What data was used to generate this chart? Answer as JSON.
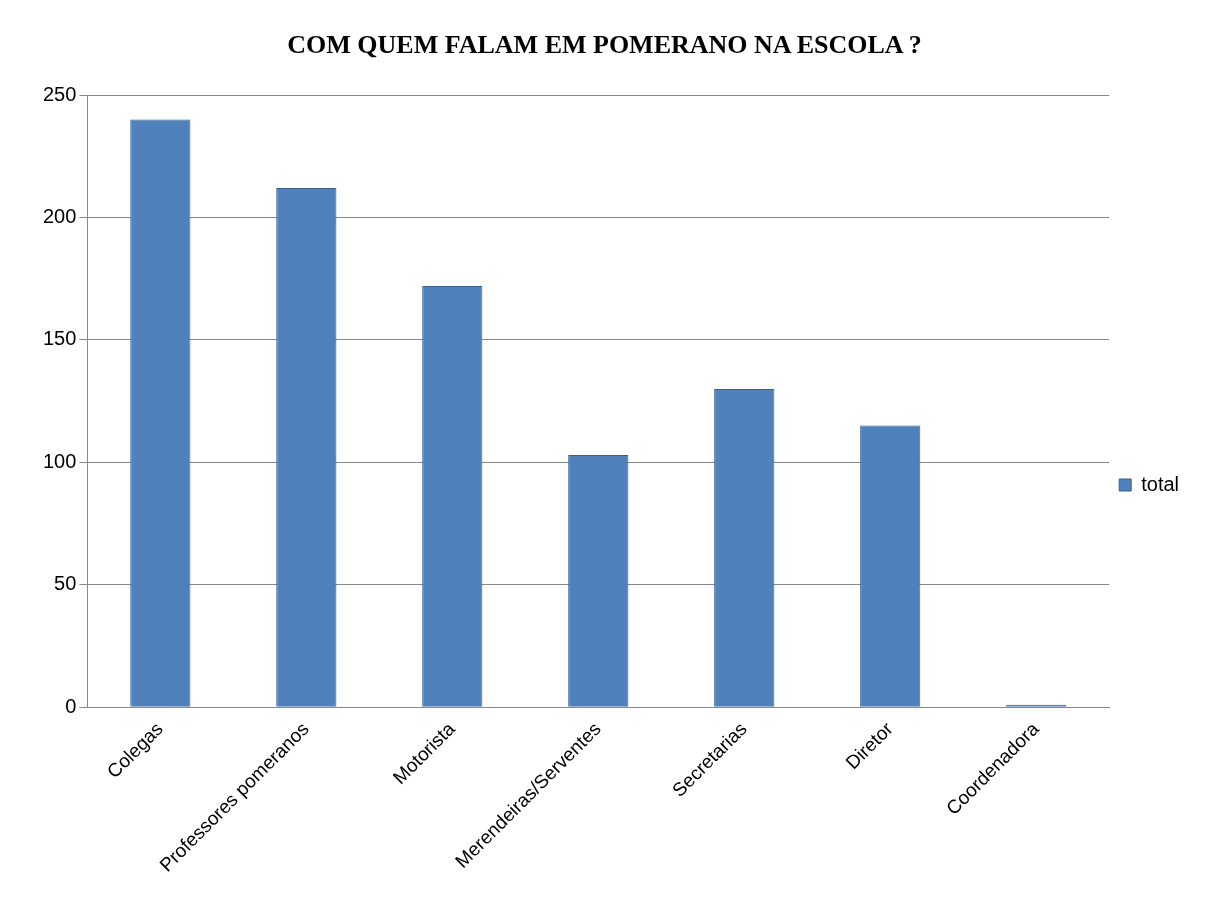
{
  "chart_data": {
    "type": "bar",
    "title": "COM QUEM FALAM EM POMERANO NA ESCOLA ?",
    "categories": [
      "Colegas",
      "Professores pomeranos",
      "Motorista",
      "Merendeiras/Serventes",
      "Secretarias",
      "Diretor",
      "Coordenadora"
    ],
    "series": [
      {
        "name": "total",
        "color": "#4f81bd",
        "values": [
          240,
          212,
          172,
          103,
          130,
          115,
          1
        ]
      }
    ],
    "ylim": [
      0,
      250
    ],
    "yticks": [
      0,
      50,
      100,
      150,
      200,
      250
    ],
    "grid": "y",
    "legend": "right"
  }
}
